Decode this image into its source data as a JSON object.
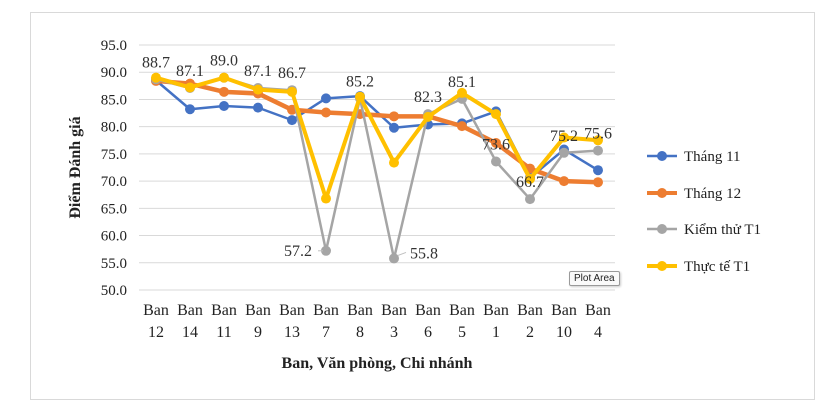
{
  "tooltip": "Plot Area",
  "chart_data": {
    "type": "line",
    "title": "",
    "xlabel": "Ban, Văn phòng, Chi nhánh",
    "ylabel": "Điểm Đánh giá",
    "ylim": [
      50,
      95
    ],
    "yticks": [
      "50.0",
      "55.0",
      "60.0",
      "65.0",
      "70.0",
      "75.0",
      "80.0",
      "85.0",
      "90.0",
      "95.0"
    ],
    "grid": true,
    "legend": "right",
    "categories": [
      [
        "Ban",
        "12"
      ],
      [
        "Ban",
        "14"
      ],
      [
        "Ban",
        "11"
      ],
      [
        "Ban",
        "9"
      ],
      [
        "Ban",
        "13"
      ],
      [
        "Ban",
        "7"
      ],
      [
        "Ban",
        "8"
      ],
      [
        "Ban",
        "3"
      ],
      [
        "Ban",
        "6"
      ],
      [
        "Ban",
        "5"
      ],
      [
        "Ban",
        "1"
      ],
      [
        "Ban",
        "2"
      ],
      [
        "Ban",
        "10"
      ],
      [
        "Ban",
        "4"
      ]
    ],
    "series": [
      {
        "name": "Tháng 11",
        "color": "#4472C4",
        "width": 2.5,
        "values": [
          88.5,
          83.2,
          83.8,
          83.5,
          81.2,
          85.2,
          85.6,
          79.8,
          80.4,
          80.6,
          82.8,
          70.6,
          75.8,
          72.0
        ]
      },
      {
        "name": "Tháng 12",
        "color": "#ED7D31",
        "width": 4.5,
        "values": [
          88.4,
          87.9,
          86.4,
          86.1,
          83.1,
          82.6,
          82.3,
          81.9,
          81.9,
          80.1,
          77.0,
          72.3,
          70.0,
          69.8
        ]
      },
      {
        "name": "Kiểm thử T1",
        "color": "#A5A5A5",
        "width": 2.5,
        "values": [
          88.7,
          87.1,
          89.0,
          87.1,
          86.7,
          57.2,
          85.2,
          55.8,
          82.3,
          85.1,
          73.6,
          66.7,
          75.2,
          75.6
        ]
      },
      {
        "name": "Thực tế T1",
        "color": "#FFC000",
        "width": 4,
        "values": [
          89.0,
          87.2,
          89.0,
          86.8,
          86.4,
          66.8,
          85.5,
          73.4,
          81.8,
          86.2,
          82.3,
          70.4,
          78.0,
          77.5
        ]
      }
    ],
    "data_labels": [
      {
        "series": 2,
        "index": 0,
        "text": "88.7"
      },
      {
        "series": 2,
        "index": 1,
        "text": "87.1"
      },
      {
        "series": 2,
        "index": 2,
        "text": "89.0"
      },
      {
        "series": 2,
        "index": 3,
        "text": "87.1"
      },
      {
        "series": 2,
        "index": 4,
        "text": "86.7"
      },
      {
        "series": 2,
        "index": 5,
        "text": "57.2"
      },
      {
        "series": 2,
        "index": 6,
        "text": "85.2"
      },
      {
        "series": 2,
        "index": 7,
        "text": "55.8"
      },
      {
        "series": 2,
        "index": 8,
        "text": "82.3"
      },
      {
        "series": 2,
        "index": 9,
        "text": "85.1"
      },
      {
        "series": 2,
        "index": 10,
        "text": "73.6"
      },
      {
        "series": 2,
        "index": 11,
        "text": "66.7"
      },
      {
        "series": 2,
        "index": 12,
        "text": "75.2"
      },
      {
        "series": 2,
        "index": 13,
        "text": "75.6"
      }
    ]
  }
}
